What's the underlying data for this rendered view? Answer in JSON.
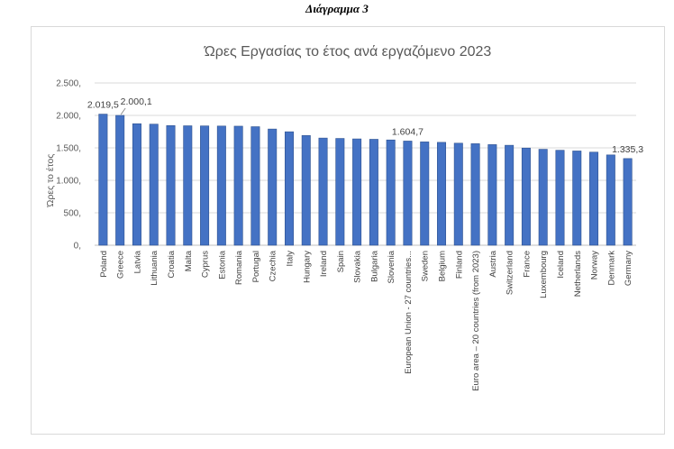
{
  "caption": "Διάγραμμα 3",
  "chart_data": {
    "type": "bar",
    "title": "Ώρες Εργασίας το έτος ανά εργαζόμενο 2023",
    "xlabel": "",
    "ylabel": "Ώρες το έτος",
    "ylim": [
      0,
      2500
    ],
    "yticks": [
      0,
      500,
      1000,
      1500,
      2000,
      2500
    ],
    "ytick_labels": [
      "0,",
      "500,",
      "1.000,",
      "1.500,",
      "2.000,",
      "2.500,"
    ],
    "grid": true,
    "bar_color": "#4472c4",
    "categories": [
      "Poland",
      "Greece",
      "Latvia",
      "Lithuania",
      "Croatia",
      "Malta",
      "Cyprus",
      "Estonia",
      "Romania",
      "Portugal",
      "Czechia",
      "Italy",
      "Hungary",
      "Ireland",
      "Spain",
      "Slovakia",
      "Bulgaria",
      "Slovenia",
      "European Union - 27 countries...",
      "Sweden",
      "Belgium",
      "Finland",
      "Euro area – 20 countries (from 2023)",
      "Austria",
      "Switzerland",
      "France",
      "Luxembourg",
      "Iceland",
      "Netherlands",
      "Norway",
      "Denmark",
      "Germany"
    ],
    "values": [
      2019.5,
      2000.1,
      1872,
      1865,
      1843,
      1840,
      1838,
      1836,
      1834,
      1826,
      1790,
      1748,
      1690,
      1651,
      1645,
      1638,
      1632,
      1622,
      1604.7,
      1592,
      1585,
      1572,
      1564,
      1550,
      1540,
      1497,
      1478,
      1463,
      1452,
      1434,
      1391,
      1335.3
    ],
    "data_labels": [
      {
        "index": 0,
        "text": "2.019,5"
      },
      {
        "index": 1,
        "text": "2.000,1"
      },
      {
        "index": 18,
        "text": "1.604,7"
      },
      {
        "index": 31,
        "text": "1.335,3"
      }
    ]
  }
}
